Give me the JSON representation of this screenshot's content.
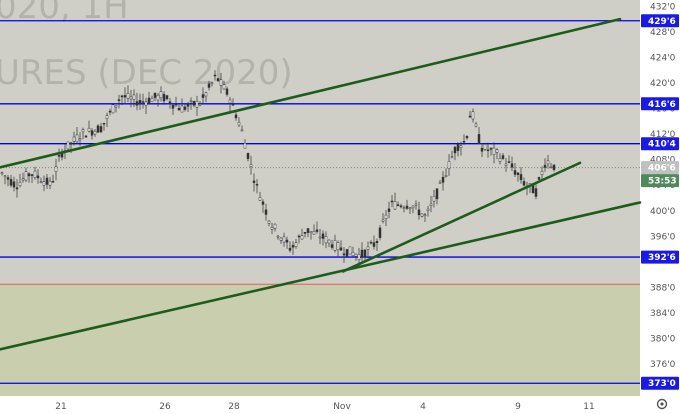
{
  "watermark": {
    "line1": "020, 1H",
    "line2": "URES (DEC 2020)"
  },
  "colors": {
    "upper_zone": "#cfcfc7",
    "lower_zone": "#c9ceae",
    "level_line": "#0000ee",
    "trendline": "#1e5c1e",
    "support_line": "#e06060",
    "candle": "#333333",
    "tag_blue": "#1a1ae6",
    "tag_green": "#4f8a5b",
    "tag_gray": "#c0c0c0",
    "axis_bg": "#ffffff"
  },
  "chart_data": {
    "type": "candlestick",
    "ylim": [
      371,
      433
    ],
    "x_ticks": [
      "21",
      "26",
      "28",
      "Nov",
      "4",
      "9",
      "11"
    ],
    "y_ticks": [
      "432'0",
      "428'0",
      "424'0",
      "420'0",
      "416'0",
      "412'0",
      "408'0",
      "404'0",
      "400'0",
      "396'0",
      "392'0",
      "388'0",
      "384'0",
      "380'0",
      "376'0",
      "373'0"
    ],
    "horizontal_levels": [
      {
        "label": "429'6",
        "value": 429.75
      },
      {
        "label": "416'6",
        "value": 416.75
      },
      {
        "label": "410'4",
        "value": 410.5
      },
      {
        "label": "392'6",
        "value": 392.75
      },
      {
        "label": "373'0",
        "value": 373.0
      }
    ],
    "support_level": {
      "value": 388.5
    },
    "current_price": {
      "label": "406'6",
      "value": 406.75
    },
    "countdown": "53:53",
    "trendlines": [
      {
        "name": "upper channel",
        "x": [
          0,
          620
        ],
        "y": [
          406.8,
          430.0
        ]
      },
      {
        "name": "lower channel",
        "x": [
          0,
          640
        ],
        "y": [
          378.3,
          401.3
        ]
      },
      {
        "name": "short uptrend",
        "x": [
          343,
          580
        ],
        "y": [
          390.5,
          407.5
        ]
      }
    ],
    "price_path": [
      {
        "x": 0,
        "y": 406
      },
      {
        "x": 15,
        "y": 404
      },
      {
        "x": 30,
        "y": 406
      },
      {
        "x": 50,
        "y": 404
      },
      {
        "x": 60,
        "y": 409
      },
      {
        "x": 80,
        "y": 412
      },
      {
        "x": 100,
        "y": 413
      },
      {
        "x": 120,
        "y": 418
      },
      {
        "x": 140,
        "y": 417
      },
      {
        "x": 160,
        "y": 418
      },
      {
        "x": 180,
        "y": 416
      },
      {
        "x": 200,
        "y": 417
      },
      {
        "x": 215,
        "y": 421
      },
      {
        "x": 228,
        "y": 418
      },
      {
        "x": 240,
        "y": 413
      },
      {
        "x": 255,
        "y": 404
      },
      {
        "x": 270,
        "y": 398
      },
      {
        "x": 290,
        "y": 394
      },
      {
        "x": 305,
        "y": 397
      },
      {
        "x": 320,
        "y": 396
      },
      {
        "x": 340,
        "y": 394
      },
      {
        "x": 360,
        "y": 393
      },
      {
        "x": 375,
        "y": 395
      },
      {
        "x": 390,
        "y": 401
      },
      {
        "x": 410,
        "y": 401
      },
      {
        "x": 425,
        "y": 399
      },
      {
        "x": 440,
        "y": 404
      },
      {
        "x": 455,
        "y": 410
      },
      {
        "x": 465,
        "y": 411
      },
      {
        "x": 470,
        "y": 416
      },
      {
        "x": 480,
        "y": 410
      },
      {
        "x": 495,
        "y": 409
      },
      {
        "x": 510,
        "y": 407
      },
      {
        "x": 525,
        "y": 404
      },
      {
        "x": 535,
        "y": 403
      },
      {
        "x": 545,
        "y": 408
      },
      {
        "x": 555,
        "y": 406.75
      }
    ]
  }
}
